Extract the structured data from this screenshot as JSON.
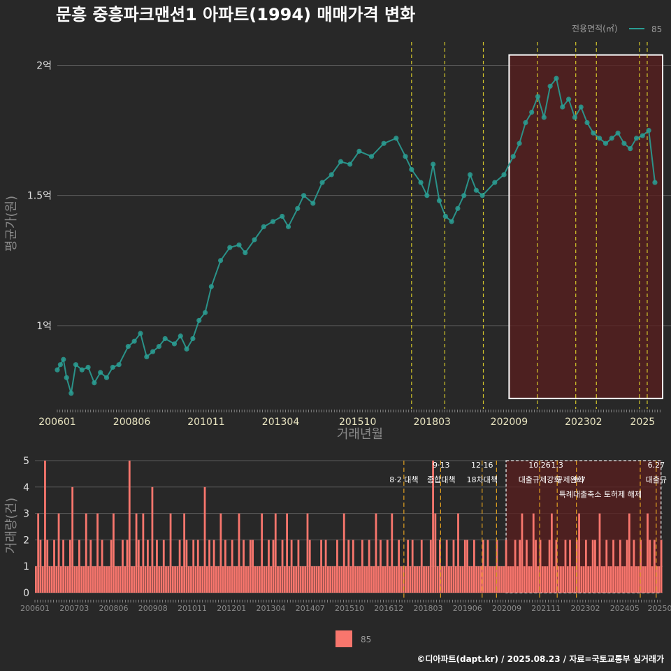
{
  "title": "문흥 중흥파크맨션1 아파트(1994) 매매가격 변화",
  "legend_top": {
    "title": "전용면적(㎡)",
    "label": "85"
  },
  "legend_bottom": {
    "label": "85"
  },
  "footer": "©디아파트(dapt.kr) / 2025.08.23 / 자료=국토교통부 실거래가",
  "colors": {
    "line": "#2a9d93",
    "bar": "#f8766d",
    "highlight": "#5a1e1e",
    "vline": "#d4c72a",
    "vline_bottom": "#e0a020"
  },
  "chart_data": [
    {
      "type": "line",
      "title": "문흥 중흥파크맨션1 아파트(1994) 매매가격 변화",
      "xlabel": "거래년월",
      "ylabel": "평균가(원)",
      "ylim": [
        0.68,
        2.09
      ],
      "y_unit": "억",
      "y_ticks": [
        {
          "v": 1,
          "label": "1억"
        },
        {
          "v": 1.5,
          "label": "1.5억"
        },
        {
          "v": 2,
          "label": "2억"
        }
      ],
      "x_tick_labels": [
        "200601",
        "200806",
        "201011",
        "201304",
        "201510",
        "201803",
        "202009",
        "202302",
        "2025"
      ],
      "x_tick_years": [
        2006.0,
        2008.417,
        2010.833,
        2013.25,
        2015.75,
        2018.167,
        2020.667,
        2023.083,
        2025.0
      ],
      "x_range": [
        2006.0,
        2025.65
      ],
      "highlight_box": {
        "from": 2020.667,
        "to": 2025.65,
        "ymin": 0.72,
        "ymax": 2.04
      },
      "policy_lines": [
        2017.5,
        2018.58,
        2019.83,
        2021.58,
        2022.83,
        2023.5,
        2024.9,
        2025.15
      ],
      "series": [
        {
          "name": "85",
          "x": [
            2006.0,
            2006.1,
            2006.2,
            2006.3,
            2006.45,
            2006.6,
            2006.8,
            2007.0,
            2007.2,
            2007.4,
            2007.6,
            2007.8,
            2008.0,
            2008.3,
            2008.5,
            2008.7,
            2008.9,
            2009.1,
            2009.3,
            2009.5,
            2009.8,
            2010.0,
            2010.2,
            2010.4,
            2010.6,
            2010.8,
            2011.0,
            2011.3,
            2011.6,
            2011.9,
            2012.1,
            2012.4,
            2012.7,
            2013.0,
            2013.3,
            2013.5,
            2013.8,
            2014.0,
            2014.3,
            2014.6,
            2014.9,
            2015.2,
            2015.5,
            2015.8,
            2016.2,
            2016.6,
            2017.0,
            2017.3,
            2017.5,
            2017.8,
            2018.0,
            2018.2,
            2018.4,
            2018.6,
            2018.8,
            2019.0,
            2019.2,
            2019.4,
            2019.6,
            2019.8,
            2020.2,
            2020.5,
            2020.8,
            2021.0,
            2021.2,
            2021.4,
            2021.6,
            2021.8,
            2022.0,
            2022.2,
            2022.4,
            2022.6,
            2022.8,
            2023.0,
            2023.2,
            2023.4,
            2023.6,
            2023.8,
            2024.0,
            2024.2,
            2024.4,
            2024.6,
            2024.8,
            2025.0,
            2025.2,
            2025.4
          ],
          "values": [
            0.83,
            0.85,
            0.87,
            0.8,
            0.74,
            0.85,
            0.83,
            0.84,
            0.78,
            0.82,
            0.8,
            0.84,
            0.85,
            0.92,
            0.94,
            0.97,
            0.88,
            0.9,
            0.92,
            0.95,
            0.93,
            0.96,
            0.91,
            0.95,
            1.02,
            1.05,
            1.15,
            1.25,
            1.3,
            1.31,
            1.28,
            1.33,
            1.38,
            1.4,
            1.42,
            1.38,
            1.45,
            1.5,
            1.47,
            1.55,
            1.58,
            1.63,
            1.62,
            1.67,
            1.65,
            1.7,
            1.72,
            1.65,
            1.6,
            1.55,
            1.5,
            1.62,
            1.48,
            1.42,
            1.4,
            1.45,
            1.5,
            1.58,
            1.52,
            1.5,
            1.55,
            1.58,
            1.65,
            1.7,
            1.78,
            1.82,
            1.88,
            1.8,
            1.92,
            1.95,
            1.84,
            1.87,
            1.8,
            1.84,
            1.78,
            1.74,
            1.72,
            1.7,
            1.72,
            1.74,
            1.7,
            1.68,
            1.72,
            1.73,
            1.75,
            1.55
          ]
        }
      ]
    },
    {
      "type": "bar",
      "xlabel": "",
      "ylabel": "거래량(건)",
      "ylim": [
        0,
        5
      ],
      "y_ticks": [
        0,
        1,
        2,
        3,
        4,
        5
      ],
      "x_tick_labels": [
        "200601",
        "200703",
        "200806",
        "200908",
        "201011",
        "201201",
        "201304",
        "201407",
        "201510",
        "201612",
        "201803",
        "201906",
        "202009",
        "202111",
        "202302",
        "202405",
        "20250"
      ],
      "x_range": [
        2006.0,
        2025.65
      ],
      "highlight_box": {
        "from": 2020.75,
        "to": 2025.6
      },
      "policy_lines": [
        2017.55,
        2018.7,
        2020.0,
        2020.45,
        2021.8,
        2022.35,
        2022.95,
        2024.95,
        2025.45
      ],
      "annotations": [
        {
          "x": 2017.55,
          "row": 0,
          "text": "8·2 대책"
        },
        {
          "x": 2018.72,
          "row": -1,
          "text": "9·13"
        },
        {
          "x": 2018.72,
          "row": 0,
          "text": "종합대책"
        },
        {
          "x": 2020.0,
          "row": -1,
          "text": "12·16"
        },
        {
          "x": 2020.0,
          "row": 0,
          "text": "18차대책"
        },
        {
          "x": 2021.8,
          "row": -1,
          "text": "10.26"
        },
        {
          "x": 2021.8,
          "row": 0,
          "text": "대출규제강화"
        },
        {
          "x": 2022.35,
          "row": -1,
          "text": "1.3"
        },
        {
          "x": 2022.75,
          "row": 0,
          "text": "규제완화"
        },
        {
          "x": 2023.05,
          "row": 0,
          "text": "9·7"
        },
        {
          "x": 2023.7,
          "row": 1,
          "text": "특례대출축소 토허제 해제"
        },
        {
          "x": 2025.45,
          "row": -1,
          "text": "6.27"
        },
        {
          "x": 2025.45,
          "row": 0,
          "text": "대출규"
        }
      ],
      "series": [
        {
          "name": "85",
          "values": [
            1,
            3,
            2,
            1,
            5,
            2,
            1,
            1,
            2,
            1,
            3,
            1,
            2,
            1,
            1,
            2,
            4,
            1,
            1,
            2,
            1,
            1,
            3,
            1,
            2,
            1,
            1,
            3,
            1,
            2,
            1,
            1,
            1,
            2,
            3,
            1,
            1,
            1,
            2,
            1,
            2,
            5,
            1,
            1,
            3,
            2,
            1,
            3,
            1,
            2,
            1,
            4,
            1,
            2,
            1,
            1,
            2,
            1,
            1,
            3,
            1,
            1,
            1,
            2,
            1,
            3,
            2,
            1,
            1,
            2,
            1,
            2,
            1,
            1,
            4,
            1,
            2,
            1,
            2,
            1,
            1,
            3,
            1,
            2,
            1,
            1,
            2,
            1,
            1,
            3,
            1,
            2,
            1,
            1,
            2,
            2,
            1,
            1,
            1,
            3,
            1,
            1,
            2,
            1,
            2,
            3,
            1,
            1,
            2,
            1,
            3,
            1,
            2,
            1,
            1,
            2,
            1,
            1,
            1,
            3,
            2,
            1,
            1,
            1,
            1,
            2,
            1,
            2,
            1,
            1,
            1,
            1,
            2,
            1,
            1,
            3,
            1,
            2,
            1,
            2,
            1,
            1,
            1,
            2,
            1,
            1,
            2,
            1,
            1,
            3,
            1,
            2,
            1,
            1,
            2,
            1,
            3,
            1,
            1,
            2,
            1,
            1,
            1,
            2,
            1,
            2,
            1,
            1,
            1,
            2,
            1,
            1,
            1,
            2,
            5,
            3,
            1,
            2,
            1,
            1,
            2,
            1,
            1,
            2,
            1,
            3,
            1,
            1,
            2,
            2,
            1,
            1,
            2,
            1,
            1,
            1,
            2,
            1,
            2,
            1,
            1,
            1,
            2,
            1,
            1,
            1,
            2,
            1,
            1,
            1,
            2,
            1,
            2,
            3,
            1,
            2,
            1,
            1,
            3,
            2,
            1,
            2,
            1,
            1,
            1,
            2,
            3,
            1,
            2,
            1,
            1,
            1,
            2,
            1,
            2,
            1,
            1,
            2,
            3,
            1,
            1,
            2,
            1,
            1,
            2,
            2,
            1,
            3,
            1,
            1,
            2,
            1,
            1,
            2,
            1,
            1,
            2,
            1,
            1,
            2,
            3,
            1,
            2,
            1,
            1,
            2,
            1,
            1,
            3,
            2,
            1,
            2,
            1,
            1,
            2
          ]
        }
      ]
    }
  ]
}
